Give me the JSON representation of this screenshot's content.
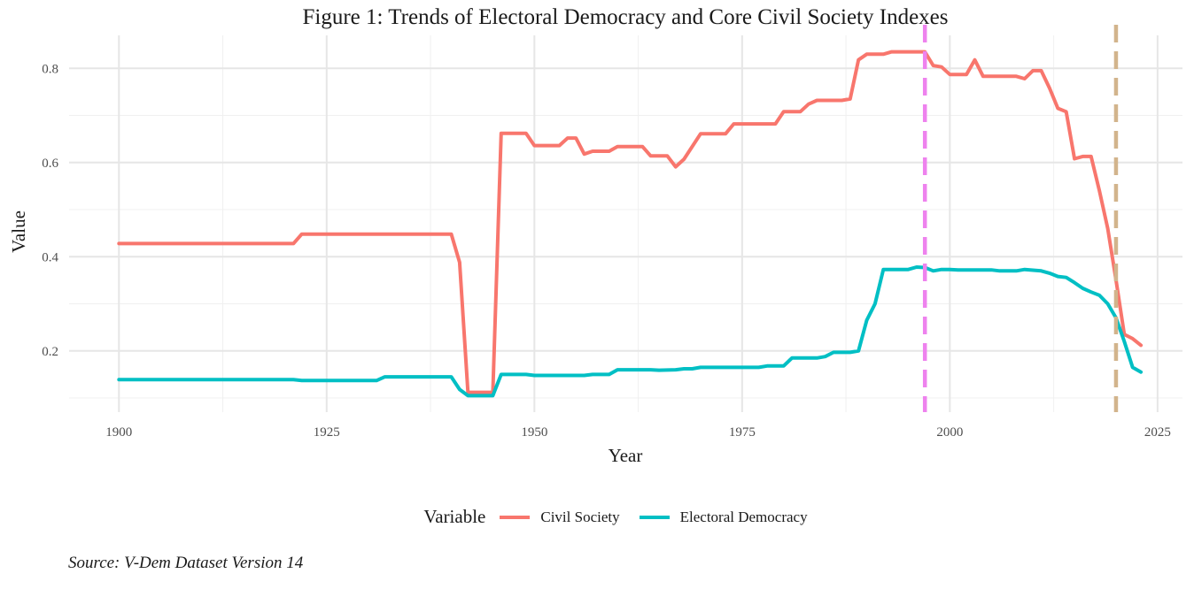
{
  "chart_data": {
    "type": "line",
    "title": "Figure 1: Trends of Electoral Democracy and Core Civil Society Indexes",
    "xlabel": "Year",
    "ylabel": "Value",
    "xlim": [
      1894,
      2028
    ],
    "ylim": [
      0.07,
      0.87
    ],
    "x_ticks": [
      1900,
      1925,
      1950,
      1975,
      2000,
      2025
    ],
    "y_ticks": [
      0.2,
      0.4,
      0.6,
      0.8
    ],
    "x_tick_labels": [
      "1900",
      "1925",
      "1950",
      "1975",
      "2000",
      "2025"
    ],
    "y_tick_labels": [
      "0.2",
      "0.4",
      "0.6",
      "0.8"
    ],
    "grid": true,
    "legend_position": "bottom",
    "legend_title": "Variable",
    "series": [
      {
        "name": "Civil Society",
        "color": "#F8766D",
        "points": [
          [
            1900,
            0.428
          ],
          [
            1921,
            0.428
          ],
          [
            1922,
            0.448
          ],
          [
            1940,
            0.448
          ],
          [
            1941,
            0.388
          ],
          [
            1942,
            0.112
          ],
          [
            1945,
            0.112
          ],
          [
            1946,
            0.662
          ],
          [
            1949,
            0.662
          ],
          [
            1950,
            0.636
          ],
          [
            1953,
            0.636
          ],
          [
            1954,
            0.652
          ],
          [
            1955,
            0.652
          ],
          [
            1956,
            0.618
          ],
          [
            1957,
            0.624
          ],
          [
            1959,
            0.624
          ],
          [
            1960,
            0.634
          ],
          [
            1963,
            0.634
          ],
          [
            1964,
            0.614
          ],
          [
            1966,
            0.614
          ],
          [
            1967,
            0.591
          ],
          [
            1968,
            0.607
          ],
          [
            1970,
            0.661
          ],
          [
            1973,
            0.661
          ],
          [
            1974,
            0.682
          ],
          [
            1979,
            0.682
          ],
          [
            1980,
            0.708
          ],
          [
            1982,
            0.708
          ],
          [
            1983,
            0.724
          ],
          [
            1984,
            0.732
          ],
          [
            1987,
            0.732
          ],
          [
            1988,
            0.735
          ],
          [
            1989,
            0.818
          ],
          [
            1990,
            0.83
          ],
          [
            1992,
            0.83
          ],
          [
            1993,
            0.835
          ],
          [
            1997,
            0.835
          ],
          [
            1998,
            0.806
          ],
          [
            1999,
            0.803
          ],
          [
            2000,
            0.787
          ],
          [
            2002,
            0.787
          ],
          [
            2003,
            0.818
          ],
          [
            2004,
            0.783
          ],
          [
            2008,
            0.783
          ],
          [
            2009,
            0.778
          ],
          [
            2010,
            0.795
          ],
          [
            2011,
            0.795
          ],
          [
            2012,
            0.758
          ],
          [
            2013,
            0.715
          ],
          [
            2014,
            0.708
          ],
          [
            2015,
            0.608
          ],
          [
            2016,
            0.613
          ],
          [
            2017,
            0.613
          ],
          [
            2018,
            0.54
          ],
          [
            2019,
            0.46
          ],
          [
            2020,
            0.35
          ],
          [
            2021,
            0.235
          ],
          [
            2022,
            0.226
          ],
          [
            2023,
            0.212
          ]
        ]
      },
      {
        "name": "Electoral Democracy",
        "color": "#00BFC4",
        "points": [
          [
            1900,
            0.139
          ],
          [
            1921,
            0.139
          ],
          [
            1922,
            0.137
          ],
          [
            1931,
            0.137
          ],
          [
            1932,
            0.145
          ],
          [
            1940,
            0.145
          ],
          [
            1941,
            0.118
          ],
          [
            1942,
            0.105
          ],
          [
            1945,
            0.105
          ],
          [
            1946,
            0.15
          ],
          [
            1949,
            0.15
          ],
          [
            1950,
            0.148
          ],
          [
            1956,
            0.148
          ],
          [
            1957,
            0.15
          ],
          [
            1959,
            0.15
          ],
          [
            1960,
            0.16
          ],
          [
            1964,
            0.16
          ],
          [
            1965,
            0.159
          ],
          [
            1967,
            0.16
          ],
          [
            1968,
            0.162
          ],
          [
            1969,
            0.162
          ],
          [
            1970,
            0.165
          ],
          [
            1977,
            0.165
          ],
          [
            1978,
            0.168
          ],
          [
            1980,
            0.168
          ],
          [
            1981,
            0.185
          ],
          [
            1984,
            0.185
          ],
          [
            1985,
            0.188
          ],
          [
            1986,
            0.197
          ],
          [
            1988,
            0.197
          ],
          [
            1989,
            0.2
          ],
          [
            1990,
            0.265
          ],
          [
            1991,
            0.3
          ],
          [
            1992,
            0.373
          ],
          [
            1995,
            0.373
          ],
          [
            1996,
            0.378
          ],
          [
            1997,
            0.377
          ],
          [
            1998,
            0.37
          ],
          [
            1999,
            0.373
          ],
          [
            2000,
            0.373
          ],
          [
            2001,
            0.372
          ],
          [
            2005,
            0.372
          ],
          [
            2006,
            0.37
          ],
          [
            2008,
            0.37
          ],
          [
            2009,
            0.373
          ],
          [
            2011,
            0.37
          ],
          [
            2012,
            0.365
          ],
          [
            2013,
            0.358
          ],
          [
            2014,
            0.356
          ],
          [
            2015,
            0.345
          ],
          [
            2016,
            0.333
          ],
          [
            2017,
            0.325
          ],
          [
            2018,
            0.318
          ],
          [
            2019,
            0.3
          ],
          [
            2020,
            0.27
          ],
          [
            2021,
            0.22
          ],
          [
            2022,
            0.165
          ],
          [
            2023,
            0.155
          ]
        ]
      }
    ],
    "vlines": [
      {
        "x": 1997,
        "color": "#EE82EE",
        "style": "dashed"
      },
      {
        "x": 2020,
        "color": "#D2B48C",
        "style": "dashed"
      }
    ]
  },
  "legend": {
    "title": "Variable",
    "items": [
      {
        "label": "Civil Society",
        "color": "#F8766D"
      },
      {
        "label": "Electoral Democracy",
        "color": "#00BFC4"
      }
    ]
  },
  "source": "Source: V-Dem Dataset Version 14"
}
